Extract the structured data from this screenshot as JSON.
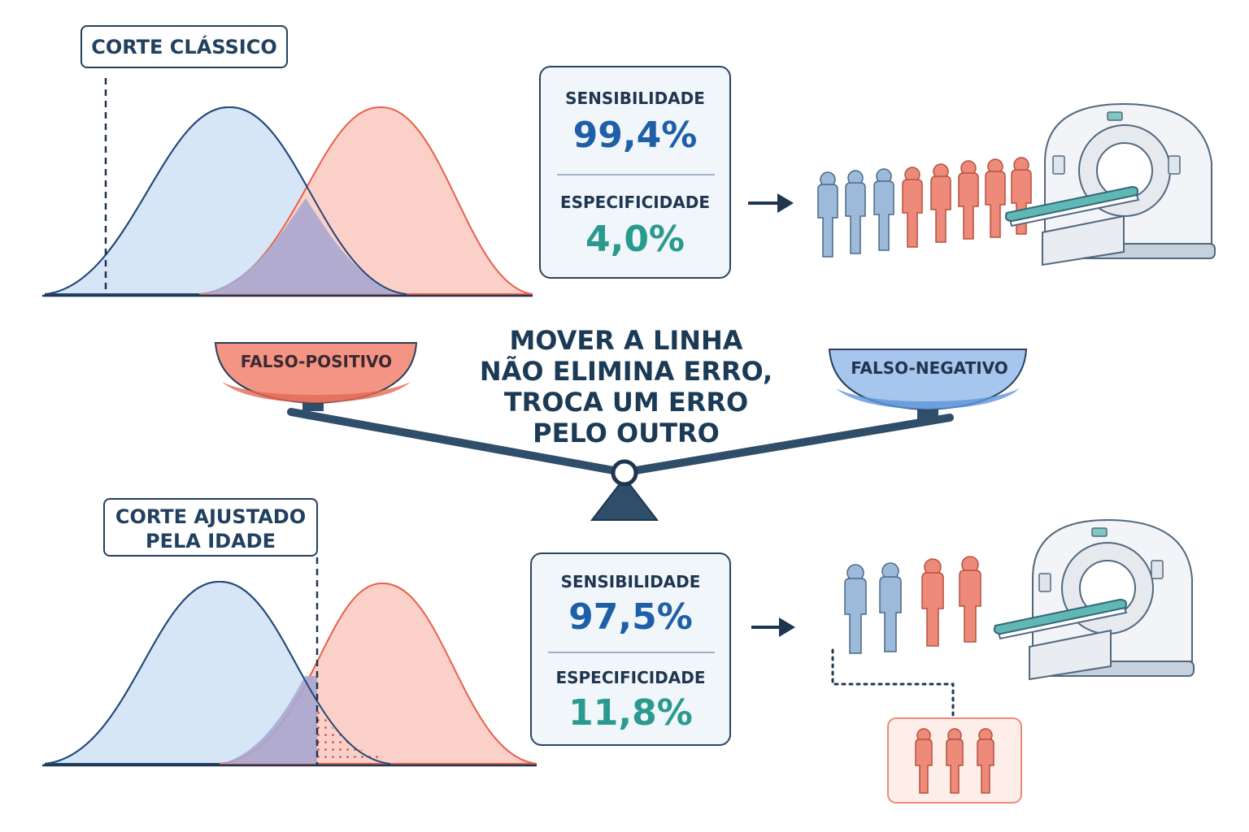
{
  "top": {
    "cutoff_label": "CORTE CLÁSSICO",
    "sensitivity_label": "SENSIBILIDADE",
    "sensitivity_value": "99,4%",
    "specificity_label": "ESPECIFICIDADE",
    "specificity_value": "4,0%"
  },
  "bottom": {
    "cutoff_label_lines": [
      "CORTE AJUSTADO",
      "PELA IDADE"
    ],
    "sensitivity_label": "SENSIBILIDADE",
    "sensitivity_value": "97,5%",
    "specificity_label": "ESPECIFICIDADE",
    "specificity_value": "11,8%"
  },
  "balance": {
    "left_pan": "FALSO-POSITIVO",
    "right_pan": "FALSO-NEGATIVO"
  },
  "headline_lines": [
    "MOVER A LINHA",
    "NÃO ELIMINA ERRO,",
    "TROCA UM ERRO",
    "PELO OUTRO"
  ],
  "colors": {
    "healthy_fill": "#d6e6f7",
    "healthy_line": "#23487a",
    "disease_fill": "#fbd0c8",
    "disease_line": "#e8604a",
    "overlap": "#a9a7cf",
    "sensitivity_text": "#1f5fa8",
    "specificity_text": "#2a9a8e",
    "person_blue": "#9dbadb",
    "person_red": "#ee8a7a"
  },
  "icons": [
    "arrow-right-icon",
    "person-icon",
    "ct-scanner-icon",
    "balance-scale-icon"
  ]
}
